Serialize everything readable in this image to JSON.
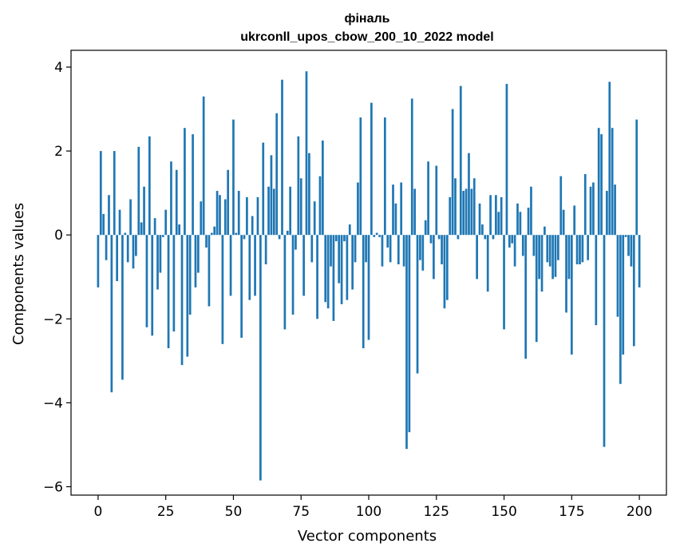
{
  "chart_data": {
    "type": "bar",
    "title": "фіналь",
    "subtitle": "ukrconll_upos_cbow_200_10_2022 model",
    "xlabel": "Vector components",
    "ylabel": "Components values",
    "xlim": [
      -10,
      210
    ],
    "ylim": [
      -6.2,
      4.4
    ],
    "xticks": [
      0,
      25,
      50,
      75,
      100,
      125,
      150,
      175,
      200
    ],
    "yticks": [
      -6,
      -4,
      -2,
      0,
      2,
      4
    ],
    "ytick_labels": [
      "−6",
      "−4",
      "−2",
      "0",
      "2",
      "4"
    ],
    "bar_color": "#1f77b4",
    "grid": false,
    "legend": "none",
    "values": [
      -1.25,
      2.0,
      0.5,
      -0.6,
      0.95,
      -3.75,
      2.0,
      -1.1,
      0.6,
      -3.45,
      0.05,
      -0.65,
      0.85,
      -0.8,
      -0.5,
      2.1,
      0.3,
      1.15,
      -2.2,
      2.35,
      -2.4,
      0.4,
      -1.3,
      -0.9,
      -0.05,
      0.6,
      -2.7,
      1.75,
      -2.3,
      1.55,
      0.25,
      -3.1,
      2.55,
      -2.9,
      -1.9,
      2.4,
      -1.25,
      -0.9,
      0.8,
      3.3,
      -0.3,
      -1.7,
      0.05,
      0.2,
      1.05,
      0.95,
      -2.6,
      0.85,
      1.55,
      -1.45,
      2.75,
      0.05,
      1.05,
      -2.45,
      -0.1,
      0.9,
      -1.55,
      0.45,
      -1.45,
      0.9,
      -5.85,
      2.2,
      -0.7,
      1.15,
      1.9,
      1.1,
      2.9,
      -0.1,
      3.7,
      -2.25,
      0.1,
      1.15,
      -1.9,
      -0.35,
      2.35,
      1.35,
      -1.45,
      3.9,
      1.95,
      -0.65,
      0.8,
      -2.0,
      1.4,
      2.25,
      -1.6,
      -1.75,
      -0.75,
      -2.05,
      -0.15,
      -1.15,
      -1.65,
      -0.15,
      -1.55,
      0.25,
      -1.3,
      -0.65,
      1.25,
      2.8,
      -2.7,
      -0.65,
      -2.5,
      3.15,
      -0.05,
      0.05,
      -0.05,
      -0.75,
      2.8,
      -0.3,
      -0.65,
      1.2,
      0.75,
      -0.7,
      1.25,
      -0.75,
      -5.1,
      -4.7,
      3.25,
      1.1,
      -3.3,
      -0.6,
      -0.85,
      0.35,
      1.75,
      -0.2,
      -1.05,
      1.65,
      -0.1,
      -0.7,
      -1.75,
      -1.55,
      0.9,
      3.0,
      1.35,
      -0.1,
      3.55,
      1.05,
      1.1,
      1.95,
      1.1,
      1.35,
      -1.05,
      0.75,
      0.25,
      -0.1,
      -1.35,
      0.95,
      -0.1,
      0.95,
      0.55,
      0.9,
      -2.25,
      3.6,
      -0.3,
      -0.2,
      -0.75,
      0.75,
      0.55,
      -0.5,
      -2.95,
      0.65,
      1.15,
      -0.5,
      -2.55,
      -1.05,
      -1.35,
      0.2,
      -0.65,
      -0.75,
      -1.05,
      -1.0,
      -0.6,
      1.4,
      0.6,
      -1.85,
      -1.05,
      -2.85,
      0.7,
      -0.7,
      -0.7,
      -0.65,
      1.45,
      -0.6,
      1.15,
      1.25,
      -2.15,
      2.55,
      2.4,
      -5.05,
      1.05,
      3.65,
      2.55,
      1.2,
      -1.95,
      -3.55,
      -2.85,
      -0.05,
      -0.5,
      -0.75,
      -2.65,
      2.75,
      -1.25
    ]
  }
}
